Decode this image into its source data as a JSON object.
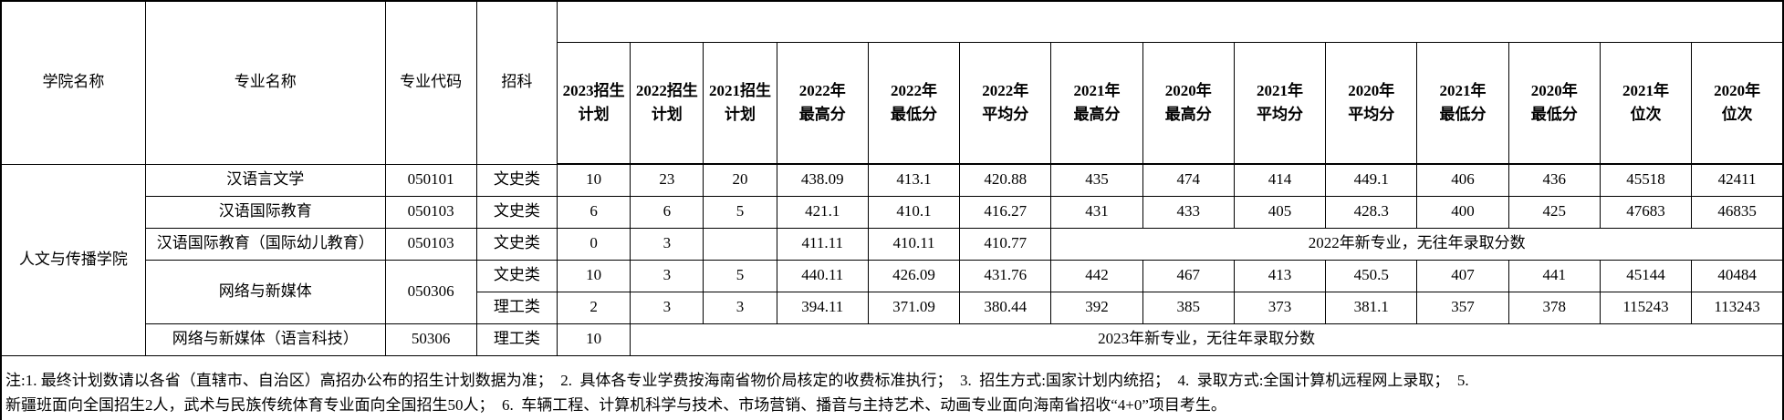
{
  "header": {
    "col_college": "学院名称",
    "col_major": "专业名称",
    "col_code": "专业代码",
    "col_subject": "招科",
    "year_cols": [
      {
        "l1": "2023招生",
        "l2": "计划"
      },
      {
        "l1": "2022招生",
        "l2": "计划"
      },
      {
        "l1": "2021招生",
        "l2": "计划"
      },
      {
        "l1": "2022年",
        "l2": "最高分"
      },
      {
        "l1": "2022年",
        "l2": "最低分"
      },
      {
        "l1": "2022年",
        "l2": "平均分"
      },
      {
        "l1": "2021年",
        "l2": "最高分"
      },
      {
        "l1": "2020年",
        "l2": "最高分"
      },
      {
        "l1": "2021年",
        "l2": "平均分"
      },
      {
        "l1": "2020年",
        "l2": "平均分"
      },
      {
        "l1": "2021年",
        "l2": "最低分"
      },
      {
        "l1": "2020年",
        "l2": "最低分"
      },
      {
        "l1": "2021年",
        "l2": "位次"
      },
      {
        "l1": "2020年",
        "l2": "位次"
      }
    ]
  },
  "college_name": "人文与传播学院",
  "rows": [
    {
      "major": "汉语言文学",
      "code": "050101",
      "subject": "文史类",
      "v": [
        "10",
        "23",
        "20",
        "438.09",
        "413.1",
        "420.88",
        "435",
        "474",
        "414",
        "449.1",
        "406",
        "436",
        "45518",
        "42411"
      ]
    },
    {
      "major": "汉语国际教育",
      "code": "050103",
      "subject": "文史类",
      "v": [
        "6",
        "6",
        "5",
        "421.1",
        "410.1",
        "416.27",
        "431",
        "433",
        "405",
        "428.3",
        "400",
        "425",
        "47683",
        "46835"
      ]
    },
    {
      "major": "汉语国际教育（国际幼儿教育）",
      "code": "050103",
      "subject": "文史类",
      "v": [
        "0",
        "3",
        "",
        "411.11",
        "410.11",
        "410.77"
      ],
      "merged_note": "2022年新专业，无往年录取分数"
    },
    {
      "major": "网络与新媒体",
      "code": "050306",
      "subject": "文史类",
      "v": [
        "10",
        "3",
        "5",
        "440.11",
        "426.09",
        "431.76",
        "442",
        "467",
        "413",
        "450.5",
        "407",
        "441",
        "45144",
        "40484"
      ]
    },
    {
      "subject": "理工类",
      "v": [
        "2",
        "3",
        "3",
        "394.11",
        "371.09",
        "380.44",
        "392",
        "385",
        "373",
        "381.1",
        "357",
        "378",
        "115243",
        "113243"
      ]
    },
    {
      "major": "网络与新媒体（语言科技）",
      "code": "50306",
      "subject": "理工类",
      "v": [
        "10"
      ],
      "merged_note": "2023年新专业，无往年录取分数"
    }
  ],
  "notes": {
    "line1": "注:1. 最终计划数请以各省（直辖市、自治区）高招办公布的招生计划数据为准；  2.  具体各专业学费按海南省物价局核定的收费标准执行；  3.  招生方式:国家计划内统招；  4.  录取方式:全国计算机远程网上录取；  5.",
    "line2": "新疆班面向全国招生2人，武术与民族传统体育专业面向全国招生50人；  6.  车辆工程、计算机科学与技术、市场营销、播音与主持艺术、动画专业面向海南省招收“4+0”项目考生。"
  }
}
